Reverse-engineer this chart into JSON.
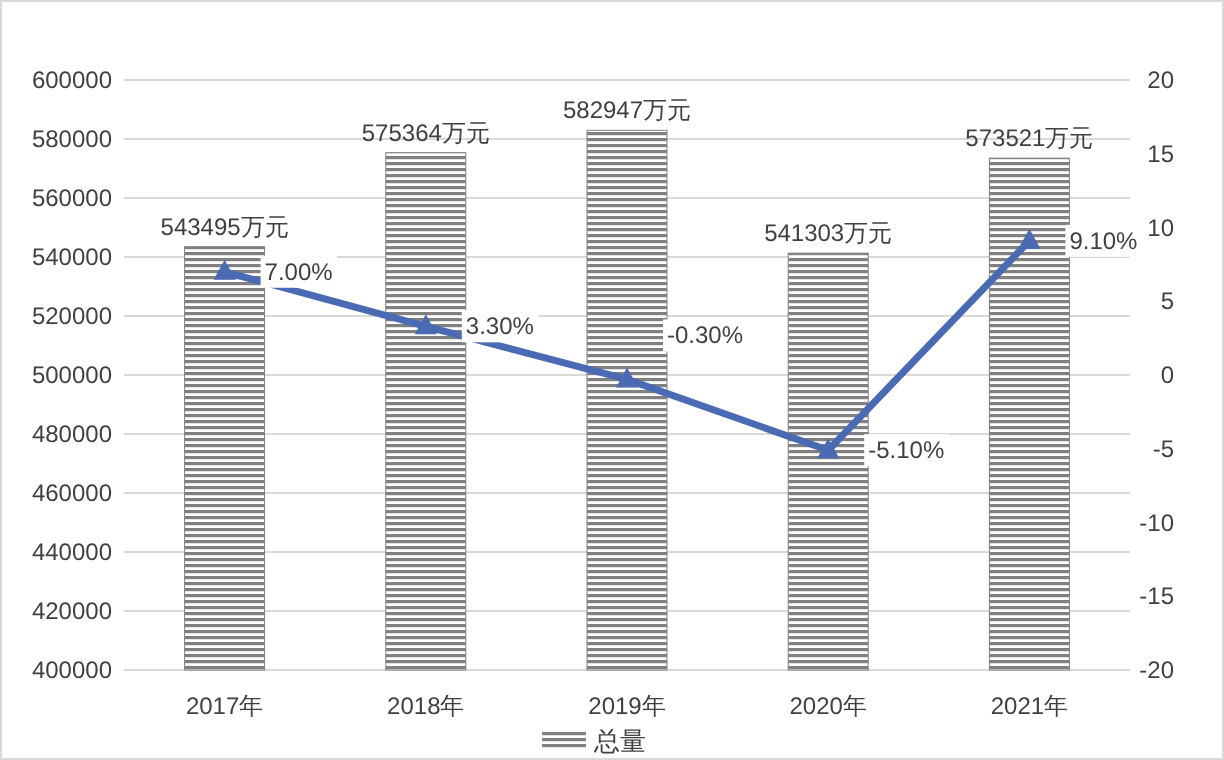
{
  "chart_data": {
    "type": "bar",
    "categories": [
      "2017年",
      "2018年",
      "2019年",
      "2020年",
      "2021年"
    ],
    "series": [
      {
        "name": "总量",
        "color": "#808080",
        "values": [
          543495,
          575364,
          582947,
          541303,
          573521
        ],
        "value_labels": [
          "543495万元",
          "575364万元",
          "582947万元",
          "541303万元",
          "573521万元"
        ]
      },
      {
        "type": "line",
        "axis": "y2",
        "color": "#4a6ab4",
        "values": [
          7.0,
          3.3,
          -0.3,
          -5.1,
          9.1
        ],
        "value_labels": [
          "7.00%",
          "3.30%",
          "-0.30%",
          "-5.10%",
          "9.10%"
        ]
      }
    ],
    "ylim": [
      400000,
      600000
    ],
    "yticks": [
      400000,
      420000,
      440000,
      460000,
      480000,
      500000,
      520000,
      540000,
      560000,
      580000,
      600000
    ],
    "y2lim": [
      -20,
      20
    ],
    "y2ticks": [
      -20,
      -15,
      -10,
      -5,
      0,
      5,
      10,
      15,
      20
    ],
    "grid": "y",
    "legend": "bottom",
    "marker": "triangle",
    "line_style": "solid"
  }
}
